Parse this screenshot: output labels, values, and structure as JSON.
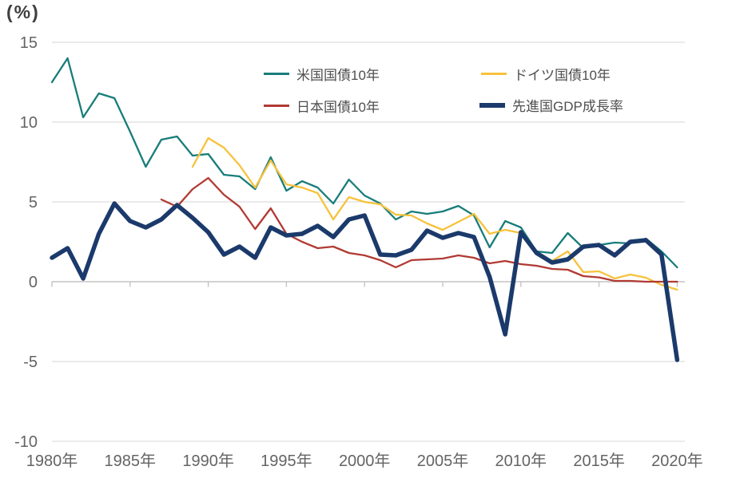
{
  "title": "(%)",
  "colors": {
    "grid": "#dedede",
    "zero_axis": "#c4c4c4",
    "tick_text": "#646464",
    "title_text": "#3f3f3f",
    "legend_text": "#4f4f4f",
    "us_line": "#187d7a",
    "de_line": "#f7c23c",
    "jp_line": "#b13a33",
    "gdp_line": "#1b3a6b"
  },
  "chart_data": {
    "type": "line",
    "title": "(%)",
    "ylabel": "(%)",
    "xlabel": "",
    "ylim": [
      -10,
      15
    ],
    "grid": "horizontal",
    "legend_position": "top-center",
    "yticks": [
      15,
      10,
      5,
      0,
      -5,
      -10
    ],
    "ytick_labels": [
      "15",
      "10",
      "5",
      "0",
      "-5",
      "-10"
    ],
    "xticks": [
      1980,
      1985,
      1990,
      1995,
      2000,
      2005,
      2010,
      2015,
      2020
    ],
    "xtick_labels": [
      "1980年",
      "1985年",
      "1990年",
      "1995年",
      "2000年",
      "2005年",
      "2010年",
      "2015年",
      "2020年"
    ],
    "x": [
      1980,
      1981,
      1982,
      1983,
      1984,
      1985,
      1986,
      1987,
      1988,
      1989,
      1990,
      1991,
      1992,
      1993,
      1994,
      1995,
      1996,
      1997,
      1998,
      1999,
      2000,
      2001,
      2002,
      2003,
      2004,
      2005,
      2006,
      2007,
      2008,
      2009,
      2010,
      2011,
      2012,
      2013,
      2014,
      2015,
      2016,
      2017,
      2018,
      2019,
      2020
    ],
    "series": [
      {
        "name": "米国国債10年",
        "color": "#187d7a",
        "width": 2.3,
        "values": [
          12.5,
          14.0,
          10.3,
          11.8,
          11.5,
          9.4,
          7.2,
          8.9,
          9.1,
          7.9,
          8.0,
          6.7,
          6.6,
          5.8,
          7.8,
          5.7,
          6.3,
          5.9,
          4.9,
          6.4,
          5.4,
          4.9,
          3.9,
          4.4,
          4.25,
          4.4,
          4.75,
          4.15,
          2.15,
          3.8,
          3.4,
          1.9,
          1.8,
          3.05,
          2.1,
          2.3,
          2.45,
          2.4,
          2.7,
          1.9,
          0.9
        ]
      },
      {
        "name": "ドイツ国債10年",
        "color": "#f7c23c",
        "width": 2.3,
        "values": [
          null,
          null,
          null,
          null,
          null,
          null,
          null,
          null,
          null,
          7.2,
          9.0,
          8.4,
          7.3,
          5.9,
          7.6,
          6.1,
          5.9,
          5.55,
          3.9,
          5.3,
          5.0,
          4.85,
          4.2,
          4.15,
          3.65,
          3.25,
          3.75,
          4.25,
          3.0,
          3.25,
          3.05,
          1.75,
          1.3,
          1.9,
          0.6,
          0.65,
          0.2,
          0.45,
          0.25,
          -0.2,
          -0.5
        ]
      },
      {
        "name": "日本国債10年",
        "color": "#b13a33",
        "width": 2.3,
        "values": [
          null,
          null,
          null,
          null,
          null,
          null,
          null,
          5.15,
          4.7,
          5.8,
          6.5,
          5.45,
          4.7,
          3.3,
          4.6,
          3.0,
          2.5,
          2.1,
          2.2,
          1.8,
          1.65,
          1.35,
          0.9,
          1.35,
          1.4,
          1.45,
          1.65,
          1.5,
          1.15,
          1.3,
          1.1,
          1.0,
          0.8,
          0.75,
          0.35,
          0.27,
          0.05,
          0.05,
          0.0,
          0.0,
          0.0
        ]
      },
      {
        "name": "先進国GDP成長率",
        "color": "#1b3a6b",
        "width": 5.5,
        "values": [
          1.5,
          2.1,
          0.2,
          3.0,
          4.9,
          3.8,
          3.4,
          3.9,
          4.8,
          4.0,
          3.1,
          1.7,
          2.2,
          1.5,
          3.4,
          2.9,
          3.0,
          3.5,
          2.8,
          3.9,
          4.15,
          1.7,
          1.65,
          2.0,
          3.2,
          2.75,
          3.05,
          2.8,
          0.3,
          -3.3,
          3.1,
          1.8,
          1.2,
          1.4,
          2.2,
          2.3,
          1.65,
          2.5,
          2.6,
          1.7,
          -4.9
        ]
      }
    ]
  }
}
